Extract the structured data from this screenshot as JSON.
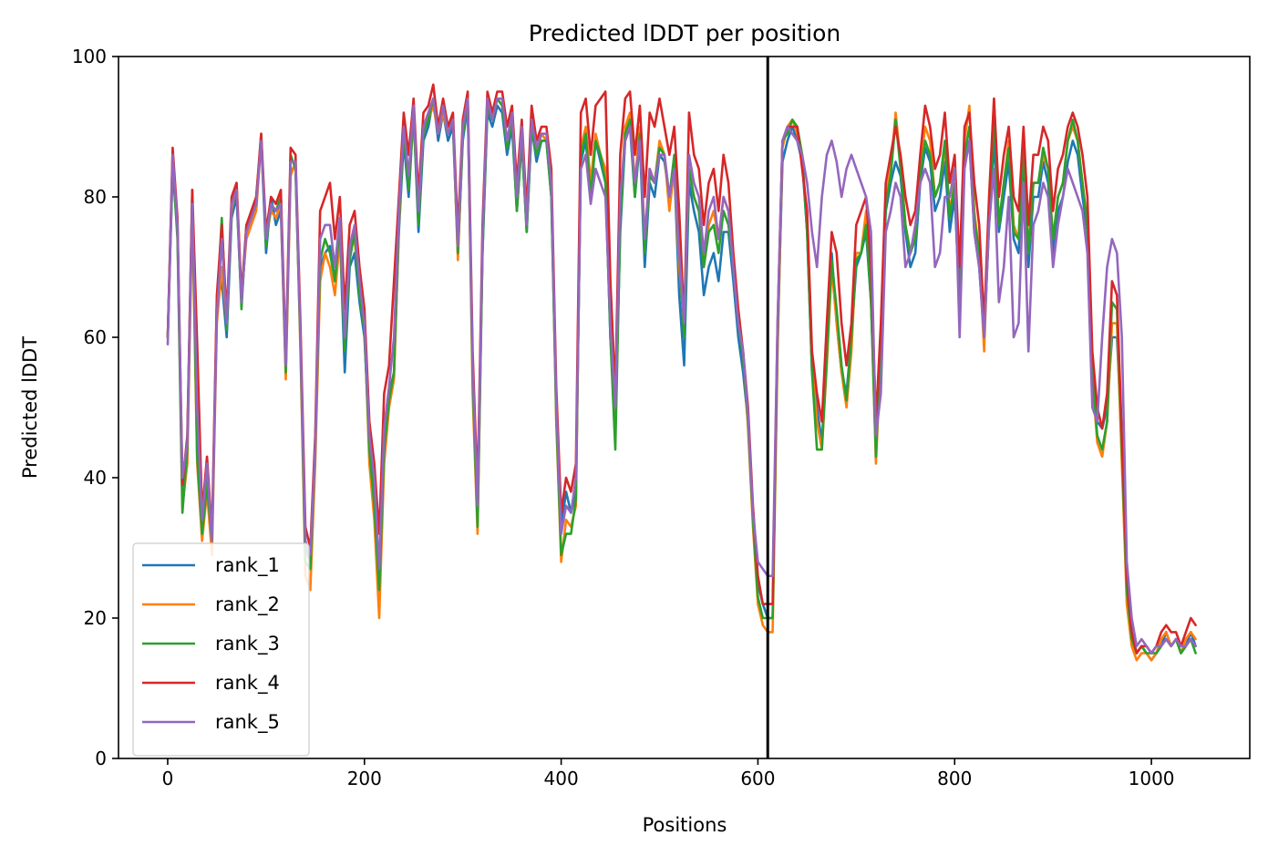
{
  "chart_data": {
    "type": "line",
    "title": "Predicted lDDT per position",
    "xlabel": "Positions",
    "ylabel": "Predicted lDDT",
    "xlim": [
      -50,
      1100
    ],
    "ylim": [
      0,
      100
    ],
    "xticks": [
      0,
      200,
      400,
      600,
      800,
      1000
    ],
    "yticks": [
      0,
      20,
      40,
      60,
      80,
      100
    ],
    "grid": false,
    "legend": "lower-left",
    "vline": 610,
    "vline_color": "#000000",
    "x": [
      0,
      5,
      10,
      15,
      20,
      25,
      30,
      35,
      40,
      45,
      50,
      55,
      60,
      65,
      70,
      75,
      80,
      85,
      90,
      95,
      100,
      105,
      110,
      115,
      120,
      125,
      130,
      135,
      140,
      145,
      150,
      155,
      160,
      165,
      170,
      175,
      180,
      185,
      190,
      195,
      200,
      205,
      210,
      215,
      220,
      225,
      230,
      235,
      240,
      245,
      250,
      255,
      260,
      265,
      270,
      275,
      280,
      285,
      290,
      295,
      300,
      305,
      310,
      315,
      320,
      325,
      330,
      335,
      340,
      345,
      350,
      355,
      360,
      365,
      370,
      375,
      380,
      385,
      390,
      395,
      400,
      405,
      410,
      415,
      420,
      425,
      430,
      435,
      440,
      445,
      450,
      455,
      460,
      465,
      470,
      475,
      480,
      485,
      490,
      495,
      500,
      505,
      510,
      515,
      520,
      525,
      530,
      535,
      540,
      545,
      550,
      555,
      560,
      565,
      570,
      575,
      580,
      585,
      590,
      595,
      600,
      605,
      610,
      615,
      620,
      625,
      630,
      635,
      640,
      645,
      650,
      655,
      660,
      665,
      670,
      675,
      680,
      685,
      690,
      695,
      700,
      705,
      710,
      715,
      720,
      725,
      730,
      735,
      740,
      745,
      750,
      755,
      760,
      765,
      770,
      775,
      780,
      785,
      790,
      795,
      800,
      805,
      810,
      815,
      820,
      825,
      830,
      835,
      840,
      845,
      850,
      855,
      860,
      865,
      870,
      875,
      880,
      885,
      890,
      895,
      900,
      905,
      910,
      915,
      920,
      925,
      930,
      935,
      940,
      945,
      950,
      955,
      960,
      965,
      970,
      975,
      980,
      985,
      990,
      995,
      1000,
      1005,
      1010,
      1015,
      1020,
      1025,
      1030,
      1035,
      1040,
      1045
    ],
    "series": [
      {
        "name": "rank_1",
        "color": "#1f77b4",
        "values": [
          60,
          84,
          75,
          38,
          45,
          80,
          44,
          33,
          40,
          30,
          65,
          68,
          60,
          77,
          80,
          65,
          75,
          78,
          80,
          88,
          72,
          80,
          76,
          78,
          55,
          84,
          84,
          60,
          30,
          28,
          45,
          70,
          72,
          73,
          68,
          75,
          55,
          70,
          72,
          65,
          60,
          45,
          38,
          25,
          45,
          52,
          55,
          75,
          88,
          80,
          92,
          75,
          88,
          90,
          94,
          88,
          92,
          88,
          90,
          72,
          88,
          93,
          55,
          35,
          72,
          92,
          90,
          93,
          92,
          86,
          90,
          78,
          88,
          75,
          90,
          85,
          88,
          88,
          80,
          50,
          33,
          38,
          35,
          38,
          85,
          88,
          80,
          88,
          85,
          82,
          60,
          48,
          75,
          88,
          90,
          80,
          88,
          70,
          82,
          80,
          86,
          85,
          80,
          84,
          66,
          56,
          82,
          78,
          75,
          66,
          70,
          72,
          68,
          75,
          75,
          68,
          60,
          55,
          48,
          35,
          25,
          22,
          20,
          20,
          60,
          85,
          88,
          90,
          88,
          85,
          75,
          55,
          50,
          45,
          58,
          72,
          62,
          55,
          52,
          60,
          70,
          72,
          75,
          65,
          45,
          60,
          78,
          82,
          85,
          83,
          75,
          70,
          72,
          82,
          87,
          85,
          78,
          80,
          85,
          75,
          80,
          65,
          85,
          88,
          75,
          70,
          60,
          76,
          88,
          75,
          80,
          85,
          74,
          72,
          86,
          70,
          80,
          80,
          85,
          82,
          72,
          78,
          80,
          85,
          88,
          86,
          80,
          75,
          55,
          48,
          47,
          50,
          60,
          60,
          45,
          25,
          18,
          15,
          16,
          15,
          14,
          15,
          16,
          18,
          16,
          17,
          15,
          16,
          18,
          16
        ]
      },
      {
        "name": "rank_2",
        "color": "#ff7f0e",
        "values": [
          60,
          86,
          76,
          36,
          42,
          78,
          42,
          31,
          38,
          29,
          62,
          70,
          62,
          78,
          82,
          66,
          74,
          76,
          78,
          88,
          74,
          78,
          77,
          79,
          54,
          83,
          85,
          58,
          26,
          24,
          42,
          68,
          72,
          70,
          66,
          74,
          60,
          72,
          74,
          67,
          62,
          42,
          34,
          20,
          42,
          50,
          54,
          76,
          90,
          82,
          91,
          78,
          90,
          91,
          93,
          89,
          92,
          89,
          91,
          71,
          89,
          94,
          52,
          32,
          73,
          93,
          91,
          94,
          93,
          88,
          91,
          80,
          89,
          76,
          91,
          86,
          89,
          88,
          82,
          48,
          28,
          34,
          33,
          36,
          87,
          90,
          82,
          89,
          86,
          84,
          62,
          46,
          78,
          90,
          92,
          82,
          90,
          74,
          84,
          82,
          88,
          86,
          78,
          84,
          70,
          62,
          84,
          80,
          78,
          70,
          76,
          78,
          74,
          80,
          78,
          70,
          62,
          58,
          47,
          33,
          22,
          19,
          18,
          18,
          58,
          87,
          90,
          91,
          89,
          86,
          76,
          56,
          48,
          44,
          56,
          70,
          62,
          55,
          50,
          58,
          72,
          72,
          78,
          66,
          42,
          58,
          80,
          84,
          92,
          85,
          76,
          72,
          74,
          84,
          90,
          88,
          80,
          82,
          87,
          78,
          82,
          66,
          88,
          93,
          78,
          72,
          58,
          78,
          94,
          76,
          82,
          88,
          76,
          74,
          88,
          72,
          82,
          82,
          86,
          84,
          74,
          80,
          82,
          88,
          90,
          88,
          82,
          76,
          54,
          45,
          43,
          48,
          62,
          62,
          42,
          22,
          16,
          14,
          15,
          15,
          14,
          15,
          17,
          18,
          16,
          17,
          15,
          17,
          18,
          17
        ]
      },
      {
        "name": "rank_3",
        "color": "#2ca02c",
        "values": [
          60,
          85,
          74,
          35,
          44,
          81,
          43,
          32,
          39,
          31,
          64,
          77,
          61,
          79,
          81,
          64,
          76,
          77,
          79,
          89,
          73,
          79,
          78,
          80,
          55,
          86,
          84,
          59,
          28,
          27,
          44,
          71,
          74,
          72,
          68,
          76,
          58,
          71,
          75,
          66,
          61,
          44,
          36,
          24,
          44,
          51,
          55,
          77,
          89,
          81,
          92,
          76,
          89,
          91,
          94,
          89,
          93,
          89,
          91,
          72,
          89,
          94,
          54,
          33,
          72,
          93,
          91,
          94,
          93,
          87,
          91,
          78,
          88,
          75,
          90,
          86,
          88,
          88,
          80,
          49,
          29,
          32,
          32,
          37,
          86,
          89,
          80,
          88,
          86,
          82,
          60,
          44,
          76,
          89,
          91,
          80,
          89,
          72,
          83,
          82,
          87,
          86,
          80,
          86,
          72,
          60,
          84,
          80,
          78,
          70,
          75,
          76,
          72,
          78,
          76,
          70,
          62,
          57,
          48,
          34,
          23,
          20,
          20,
          20,
          60,
          88,
          89,
          91,
          90,
          86,
          75,
          55,
          44,
          44,
          57,
          71,
          64,
          56,
          51,
          60,
          71,
          72,
          76,
          65,
          43,
          59,
          79,
          83,
          91,
          84,
          76,
          72,
          74,
          83,
          88,
          86,
          80,
          82,
          88,
          77,
          82,
          66,
          86,
          90,
          77,
          72,
          60,
          77,
          92,
          76,
          82,
          87,
          75,
          74,
          88,
          72,
          82,
          82,
          87,
          84,
          74,
          80,
          82,
          88,
          91,
          88,
          82,
          76,
          55,
          46,
          44,
          48,
          65,
          64,
          44,
          24,
          17,
          15,
          16,
          15,
          15,
          15,
          16,
          17,
          16,
          17,
          15,
          16,
          17,
          15
        ]
      },
      {
        "name": "rank_4",
        "color": "#d62728",
        "values": [
          60,
          87,
          77,
          39,
          46,
          81,
          59,
          35,
          43,
          32,
          66,
          76,
          63,
          80,
          82,
          66,
          76,
          78,
          80,
          89,
          75,
          80,
          79,
          81,
          57,
          87,
          86,
          62,
          33,
          30,
          46,
          78,
          80,
          82,
          74,
          80,
          64,
          76,
          78,
          70,
          64,
          48,
          42,
          32,
          52,
          56,
          68,
          80,
          92,
          86,
          94,
          80,
          92,
          93,
          96,
          90,
          94,
          90,
          92,
          75,
          91,
          95,
          58,
          38,
          76,
          95,
          92,
          95,
          95,
          90,
          93,
          82,
          91,
          78,
          93,
          88,
          90,
          90,
          84,
          53,
          35,
          40,
          38,
          42,
          92,
          94,
          86,
          93,
          94,
          95,
          68,
          52,
          86,
          94,
          95,
          86,
          93,
          80,
          92,
          90,
          94,
          90,
          86,
          90,
          78,
          62,
          92,
          86,
          84,
          76,
          82,
          84,
          78,
          86,
          82,
          72,
          64,
          58,
          50,
          36,
          26,
          22,
          22,
          22,
          62,
          88,
          90,
          90,
          90,
          84,
          78,
          58,
          52,
          48,
          62,
          75,
          72,
          62,
          56,
          62,
          76,
          78,
          80,
          70,
          48,
          62,
          82,
          86,
          90,
          86,
          80,
          76,
          78,
          86,
          93,
          90,
          84,
          86,
          92,
          82,
          86,
          70,
          90,
          92,
          82,
          76,
          62,
          80,
          94,
          80,
          86,
          90,
          80,
          78,
          90,
          76,
          86,
          86,
          90,
          88,
          78,
          84,
          86,
          90,
          92,
          90,
          86,
          80,
          58,
          50,
          47,
          52,
          68,
          66,
          46,
          26,
          18,
          15,
          16,
          16,
          15,
          16,
          18,
          19,
          18,
          18,
          16,
          18,
          20,
          19
        ]
      },
      {
        "name": "rank_5",
        "color": "#9467bd",
        "values": [
          59,
          86,
          76,
          40,
          45,
          79,
          50,
          34,
          42,
          31,
          63,
          74,
          62,
          79,
          81,
          65,
          75,
          77,
          79,
          88,
          74,
          79,
          78,
          79,
          56,
          85,
          85,
          60,
          31,
          29,
          44,
          74,
          76,
          76,
          70,
          77,
          60,
          73,
          76,
          68,
          62,
          46,
          40,
          27,
          47,
          53,
          60,
          78,
          90,
          83,
          93,
          78,
          90,
          92,
          94,
          89,
          93,
          89,
          91,
          73,
          90,
          94,
          56,
          36,
          74,
          94,
          91,
          94,
          94,
          88,
          92,
          80,
          90,
          76,
          91,
          87,
          89,
          89,
          82,
          51,
          32,
          36,
          35,
          40,
          84,
          86,
          79,
          84,
          82,
          80,
          62,
          50,
          80,
          88,
          90,
          82,
          88,
          74,
          84,
          82,
          86,
          86,
          80,
          84,
          72,
          62,
          86,
          82,
          80,
          72,
          78,
          80,
          74,
          80,
          78,
          70,
          62,
          58,
          49,
          35,
          28,
          27,
          26,
          26,
          62,
          88,
          90,
          89,
          88,
          86,
          82,
          75,
          70,
          80,
          86,
          88,
          85,
          80,
          84,
          86,
          84,
          82,
          80,
          75,
          46,
          52,
          75,
          78,
          82,
          80,
          70,
          72,
          76,
          82,
          84,
          82,
          70,
          72,
          80,
          80,
          84,
          60,
          84,
          88,
          75,
          70,
          60,
          76,
          84,
          65,
          70,
          80,
          60,
          62,
          82,
          58,
          76,
          78,
          82,
          80,
          70,
          76,
          80,
          84,
          82,
          80,
          78,
          72,
          50,
          48,
          60,
          70,
          74,
          72,
          60,
          28,
          20,
          16,
          17,
          16,
          15,
          16,
          16,
          17,
          16,
          17,
          16,
          16,
          17,
          16
        ]
      }
    ]
  }
}
